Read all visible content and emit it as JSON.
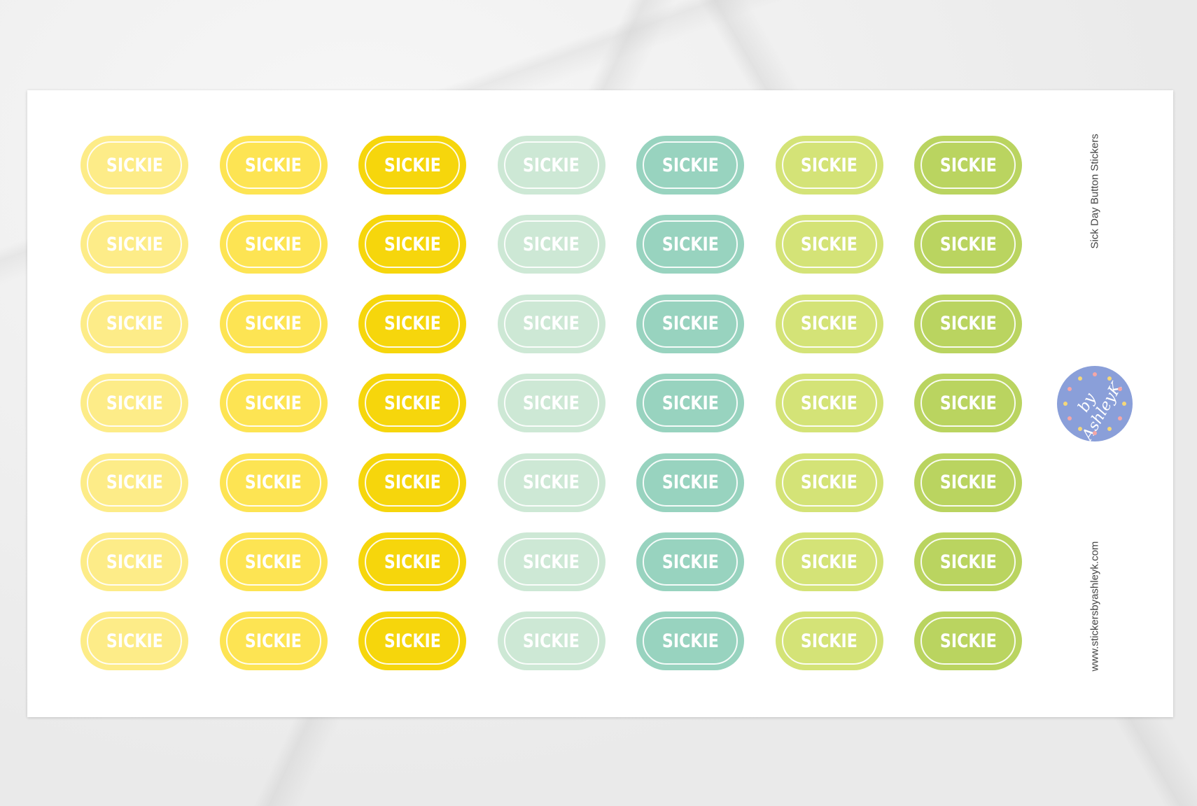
{
  "sheet": {
    "title": "Sick Day Button Stickers",
    "website": "www.stickersbyashleyk.com",
    "logo_text": "by AshleyK",
    "sticker_label": "SICKIE",
    "rows": 7,
    "columns": [
      {
        "color": "#fdec88"
      },
      {
        "color": "#fde453"
      },
      {
        "color": "#f6d60c"
      },
      {
        "color": "#cde8d5"
      },
      {
        "color": "#98d3bf"
      },
      {
        "color": "#d4e377"
      },
      {
        "color": "#bad460"
      }
    ],
    "logo_color": "#8a9fd9"
  }
}
